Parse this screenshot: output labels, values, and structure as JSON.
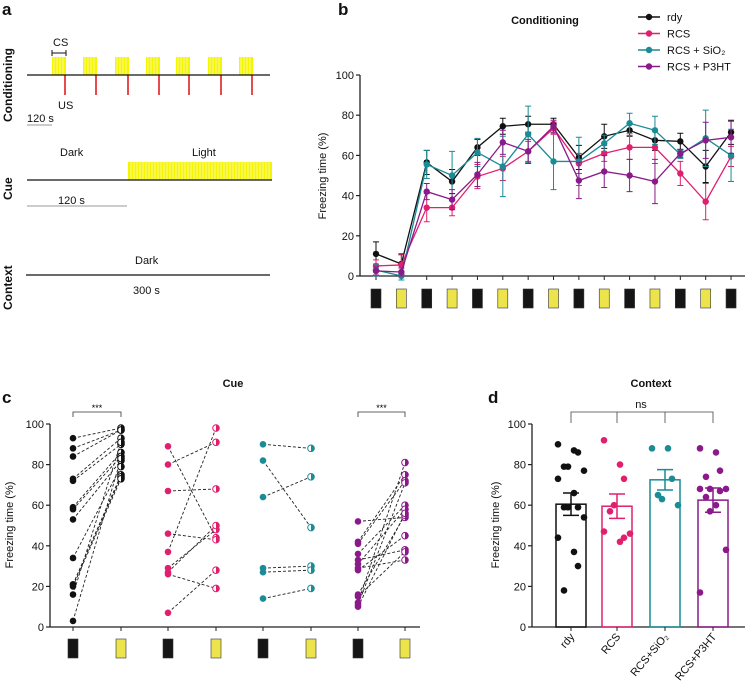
{
  "panels": {
    "a": "a",
    "b": "b",
    "c": "c",
    "d": "d"
  },
  "protocol": {
    "rows": [
      "Conditioning",
      "Cue",
      "Context"
    ],
    "cs_label": "CS",
    "us_label": "US",
    "cond_scale": "120 s",
    "cue_dark": "Dark",
    "cue_light": "Light",
    "cue_scale": "120 s",
    "context_dark": "Dark",
    "context_scale": "300 s",
    "colors": {
      "light": "#f5f500",
      "shock": "#e02020"
    }
  },
  "chart_data": [
    {
      "type": "line",
      "title": "Conditioning",
      "ylabel": "Freezing time (%)",
      "ylim": [
        0,
        100
      ],
      "yticks": [
        "0",
        "20",
        "40",
        "60",
        "80",
        "100"
      ],
      "categories": [
        "dark",
        "light",
        "dark",
        "light",
        "dark",
        "light",
        "dark",
        "light",
        "dark",
        "light",
        "dark",
        "light",
        "dark",
        "light",
        "dark"
      ],
      "legend_position": "top-right",
      "series": [
        {
          "name": "rdy",
          "color": "#111111",
          "values": [
            11,
            6,
            56.5,
            47,
            64,
            74.5,
            75.5,
            75.5,
            59,
            69.5,
            72.5,
            67.5,
            67,
            54.5,
            71.5
          ],
          "errors": [
            6,
            5,
            6,
            6,
            4,
            4,
            4,
            3,
            6,
            6,
            3,
            5,
            4,
            8,
            6
          ]
        },
        {
          "name": "RCS",
          "color": "#e0206e",
          "values": [
            5,
            5.5,
            34,
            34,
            49.5,
            53.5,
            62,
            73.5,
            56,
            61,
            64,
            64,
            51,
            37,
            59.5
          ],
          "errors": [
            3,
            5,
            7,
            4,
            6,
            6,
            5,
            3,
            5,
            4,
            6,
            8,
            6,
            9,
            5
          ]
        },
        {
          "name": "RCS + SiO₂",
          "color": "#1a8c96",
          "values": [
            3,
            0,
            55.5,
            50,
            61.5,
            54.5,
            70.5,
            57,
            57,
            66,
            76,
            72.5,
            60.5,
            68.5,
            60
          ],
          "errors": [
            3,
            2,
            7,
            12,
            7,
            15,
            14,
            14,
            12,
            4,
            5,
            7,
            2,
            14,
            13
          ]
        },
        {
          "name": "RCS + P3HT",
          "color": "#8a1a8a",
          "values": [
            2.5,
            2,
            42,
            38,
            50.5,
            66.5,
            62,
            74.5,
            47.5,
            52,
            50,
            47,
            61,
            67.5,
            69
          ],
          "errors": [
            2,
            2,
            4,
            5,
            6,
            6,
            6,
            3,
            9,
            8,
            8,
            11,
            2,
            9,
            8
          ]
        }
      ]
    },
    {
      "type": "scatter",
      "title": "Cue",
      "ylabel": "Freezing time (%)",
      "ylim": [
        0,
        100
      ],
      "yticks": [
        "0",
        "20",
        "40",
        "60",
        "80",
        "100"
      ],
      "categories": [
        "dark",
        "light",
        "dark",
        "light",
        "dark",
        "light",
        "dark",
        "light"
      ],
      "significance": [
        {
          "groups": [
            0
          ],
          "label": "***"
        },
        {
          "groups": [
            3
          ],
          "label": "***"
        }
      ],
      "groups": [
        {
          "color": "#111111",
          "dark": [
            93,
            88,
            84,
            73,
            72,
            59,
            58,
            53,
            34,
            21,
            21,
            20,
            16,
            3
          ],
          "light": [
            98,
            97,
            97,
            93,
            90,
            86,
            84,
            82,
            79,
            75,
            74,
            73,
            91,
            83
          ]
        },
        {
          "color": "#e0206e",
          "dark": [
            89,
            80,
            67,
            46,
            37,
            29,
            27,
            26,
            7
          ],
          "light": [
            44,
            91,
            68,
            43,
            98,
            48,
            50,
            19,
            28
          ]
        },
        {
          "color": "#1a8c96",
          "dark": [
            90,
            82,
            64,
            29,
            27,
            14
          ],
          "light": [
            88,
            49,
            74,
            30,
            28,
            19
          ]
        },
        {
          "color": "#8a1a8a",
          "dark": [
            52,
            42,
            41,
            36,
            33,
            31,
            29,
            28,
            16,
            15,
            12,
            11,
            10
          ],
          "light": [
            54,
            75,
            72,
            60,
            38,
            58,
            33,
            45,
            55,
            37,
            81,
            71,
            56
          ]
        }
      ]
    },
    {
      "type": "bar",
      "title": "Context",
      "ylabel": "Freezing time (%)",
      "ylim": [
        0,
        100
      ],
      "yticks": [
        "0",
        "20",
        "40",
        "60",
        "80",
        "100"
      ],
      "categories": [
        "rdy",
        "RCS",
        "RCS+SiO₂",
        "RCS+P3HT"
      ],
      "significance_label": "ns",
      "bars": [
        {
          "color": "#111111",
          "mean": 60.5,
          "sem": 5.5,
          "points": [
            90,
            87,
            86,
            79,
            79,
            77,
            73,
            66,
            59,
            59,
            59,
            54,
            44,
            37,
            30,
            18
          ]
        },
        {
          "color": "#e0206e",
          "mean": 59.5,
          "sem": 6,
          "points": [
            92,
            80,
            73,
            57,
            60,
            46,
            47,
            42,
            44
          ]
        },
        {
          "color": "#1a8c96",
          "mean": 72.5,
          "sem": 5,
          "points": [
            88,
            88,
            73,
            65,
            63,
            60
          ]
        },
        {
          "color": "#8a1a8a",
          "mean": 62.5,
          "sem": 6,
          "points": [
            88,
            86,
            77,
            74,
            68,
            68,
            68,
            60,
            67,
            64,
            57,
            38,
            17
          ]
        }
      ]
    }
  ],
  "condition_colors": {
    "dark": "#151515",
    "light": "#ece44a"
  }
}
